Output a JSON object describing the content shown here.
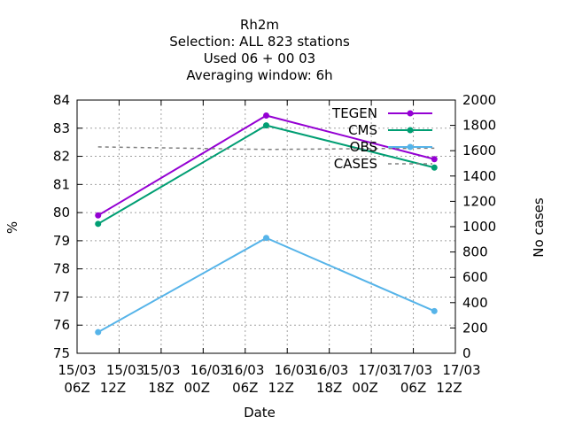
{
  "chart_data": {
    "type": "line",
    "title_lines": [
      "Rh2m",
      "Selection: ALL    823 stations",
      "Used  06 + 00 03",
      "Averaging window:  6h"
    ],
    "xlabel": "Date",
    "ylabel": "%",
    "y2label": "No cases",
    "ylim": [
      75,
      84
    ],
    "y2lim": [
      0,
      2000
    ],
    "yticks": [
      75,
      76,
      77,
      78,
      79,
      80,
      81,
      82,
      83,
      84
    ],
    "y2ticks": [
      0,
      200,
      400,
      600,
      800,
      1000,
      1200,
      1400,
      1600,
      1800,
      2000
    ],
    "xticks": [
      {
        "day": "15/03",
        "hour": "06Z"
      },
      {
        "day": "15/03",
        "hour": "12Z"
      },
      {
        "day": "15/03",
        "hour": "18Z"
      },
      {
        "day": "16/03",
        "hour": "00Z"
      },
      {
        "day": "16/03",
        "hour": "06Z"
      },
      {
        "day": "16/03",
        "hour": "12Z"
      },
      {
        "day": "16/03",
        "hour": "18Z"
      },
      {
        "day": "17/03",
        "hour": "00Z"
      },
      {
        "day": "17/03",
        "hour": "06Z"
      },
      {
        "day": "17/03",
        "hour": "12Z"
      }
    ],
    "x_points": [
      "15/03 09Z",
      "16/03 09Z",
      "17/03 09Z"
    ],
    "grid": true,
    "legend_position": "top-right",
    "series": [
      {
        "name": "TEGEN",
        "color": "#9400d3",
        "axis": "y",
        "values": [
          79.9,
          83.45,
          81.9
        ]
      },
      {
        "name": "CMS",
        "color": "#009e73",
        "axis": "y",
        "values": [
          79.6,
          83.1,
          81.6
        ]
      },
      {
        "name": "OBS",
        "color": "#56b4e9",
        "axis": "y",
        "values": [
          75.75,
          79.1,
          76.5
        ]
      },
      {
        "name": "CASES",
        "color": "#808080",
        "axis": "y2",
        "dashed": true,
        "values": [
          1630,
          1610,
          1620
        ]
      }
    ]
  }
}
